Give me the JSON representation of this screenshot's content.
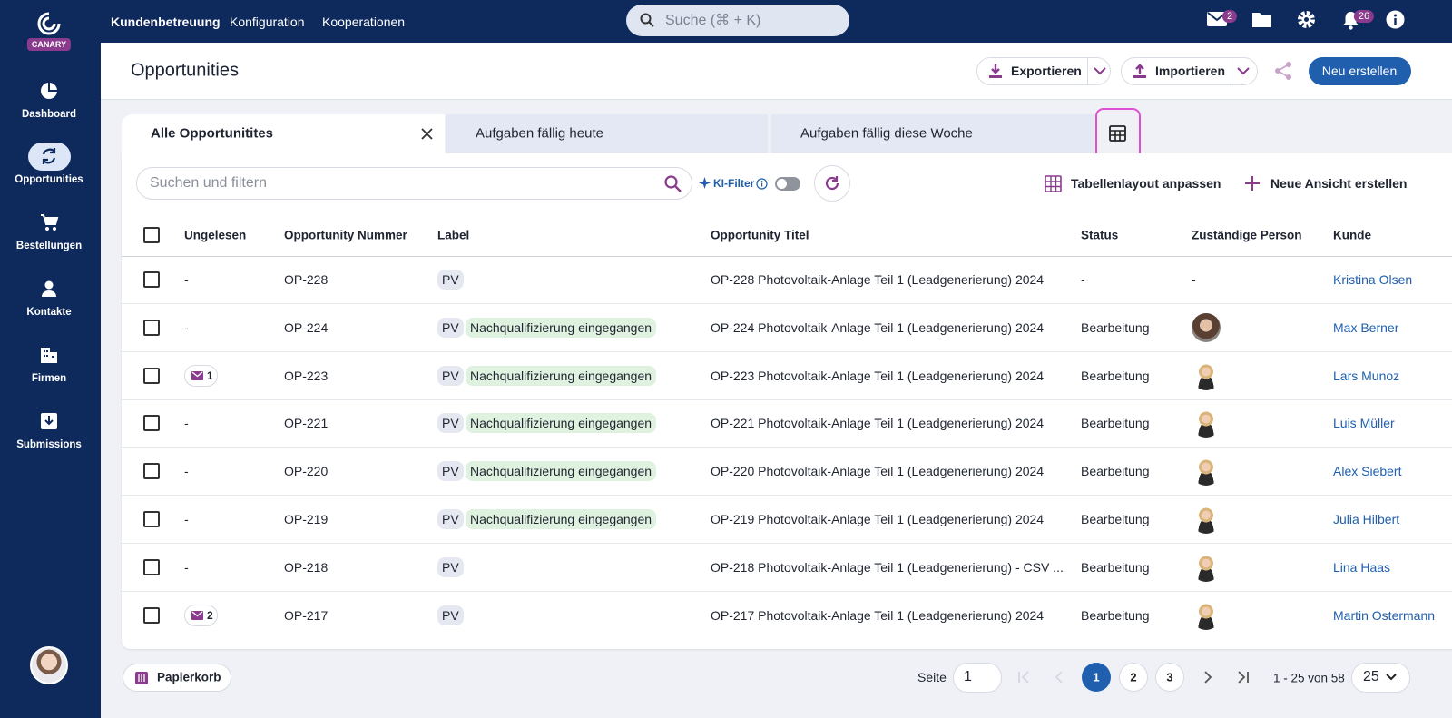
{
  "sidebar": {
    "brand": "CANARY",
    "nav": [
      "Dashboard",
      "Opportunities",
      "Bestellungen",
      "Kontakte",
      "Firmen",
      "Submissions"
    ]
  },
  "topbar": {
    "nav": [
      "Kundenbetreuung",
      "Konfiguration",
      "Kooperationen"
    ],
    "search": "Suche (⌘ + K)",
    "mail_badge": "2",
    "notification_badge": "26"
  },
  "header": {
    "title": "Opportunities",
    "export": "Exportieren",
    "import": "Importieren",
    "create": "Neu erstellen"
  },
  "tabs": [
    "Alle Opportunitites",
    "Aufgaben fällig heute",
    "Aufgaben fällig diese Woche"
  ],
  "toolbar": {
    "search": "Suchen und filtern",
    "ai_filter": "KI-Filter",
    "layout": "Tabellenlayout anpassen",
    "new_view": "Neue Ansicht erstellen"
  },
  "table": {
    "columns": [
      "Ungelesen",
      "Opportunity Nummer",
      "Label",
      "Opportunity Titel",
      "Status",
      "Zuständige Person",
      "Kunde"
    ],
    "rows": [
      {
        "unread": "-",
        "number": "OP-228",
        "labels": [
          "PV"
        ],
        "title": "OP-228 Photovoltaik-Anlage Teil 1 (Leadgenerierung) 2024",
        "status": "-",
        "person": "-",
        "customer": "Kristina Olsen"
      },
      {
        "unread": "-",
        "number": "OP-224",
        "labels": [
          "PV",
          "Nachqualifizierung eingegangen"
        ],
        "title": "OP-224 Photovoltaik-Anlage Teil 1 (Leadgenerierung) 2024",
        "status": "Bearbeitung",
        "customer": "Max Berner"
      },
      {
        "unread_mail": "1",
        "number": "OP-223",
        "labels": [
          "PV",
          "Nachqualifizierung eingegangen"
        ],
        "title": "OP-223 Photovoltaik-Anlage Teil 1 (Leadgenerierung) 2024",
        "status": "Bearbeitung",
        "customer": "Lars Munoz"
      },
      {
        "unread": "-",
        "number": "OP-221",
        "labels": [
          "PV",
          "Nachqualifizierung eingegangen"
        ],
        "title": "OP-221 Photovoltaik-Anlage Teil 1 (Leadgenerierung) 2024",
        "status": "Bearbeitung",
        "customer": "Luis Müller"
      },
      {
        "unread": "-",
        "number": "OP-220",
        "labels": [
          "PV",
          "Nachqualifizierung eingegangen"
        ],
        "title": "OP-220 Photovoltaik-Anlage Teil 1 (Leadgenerierung) 2024",
        "status": "Bearbeitung",
        "customer": "Alex Siebert"
      },
      {
        "unread": "-",
        "number": "OP-219",
        "labels": [
          "PV",
          "Nachqualifizierung eingegangen"
        ],
        "title": "OP-219 Photovoltaik-Anlage Teil 1 (Leadgenerierung) 2024",
        "status": "Bearbeitung",
        "customer": "Julia Hilbert"
      },
      {
        "unread": "-",
        "number": "OP-218",
        "labels": [
          "PV"
        ],
        "title": "OP-218 Photovoltaik-Anlage Teil 1 (Leadgenerierung) - CSV ...",
        "status": "Bearbeitung",
        "customer": "Lina Haas"
      },
      {
        "unread_mail": "2",
        "number": "OP-217",
        "labels": [
          "PV"
        ],
        "title": "OP-217 Photovoltaik-Anlage Teil 1 (Leadgenerierung) 2024",
        "status": "Bearbeitung",
        "customer": "Martin Ostermann"
      }
    ]
  },
  "footer": {
    "trash": "Papierkorb",
    "page_label": "Seite",
    "page_input": "1",
    "pages": [
      "1",
      "2",
      "3"
    ],
    "range": "1 - 25 von 58",
    "page_size": "25"
  }
}
